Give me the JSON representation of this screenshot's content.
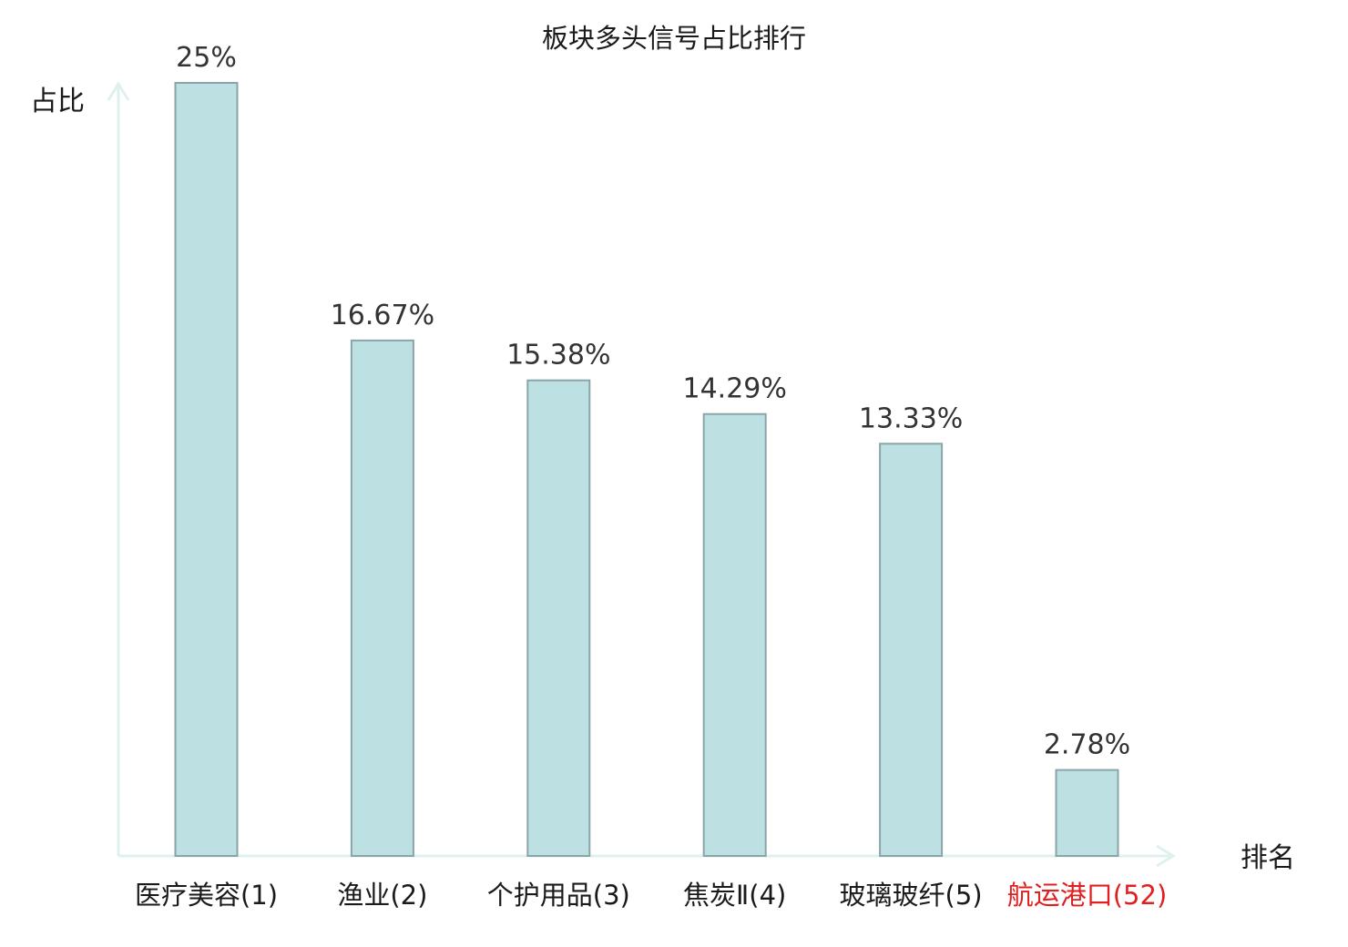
{
  "chart_data": {
    "type": "bar",
    "title": "板块多头信号占比排行",
    "ylabel": "占比",
    "xlabel": "排名",
    "categories": [
      "医疗美容(1)",
      "渔业(2)",
      "个护用品(3)",
      "焦炭Ⅱ(4)",
      "玻璃玻纤(5)",
      "航运港口(52)"
    ],
    "values": [
      25,
      16.67,
      15.38,
      14.29,
      13.33,
      2.78
    ],
    "value_labels": [
      "25%",
      "16.67%",
      "15.38%",
      "14.29%",
      "13.33%",
      "2.78%"
    ],
    "highlight_index": 5,
    "ylim": [
      0,
      25
    ],
    "grid": false,
    "legend": "none"
  },
  "colors": {
    "bar_fill": "#bde0e2",
    "bar_stroke": "#8aa5a8",
    "axis": "#dff1ef",
    "text": "#1a1a1a",
    "value_text": "#333333",
    "highlight": "#e02020"
  }
}
